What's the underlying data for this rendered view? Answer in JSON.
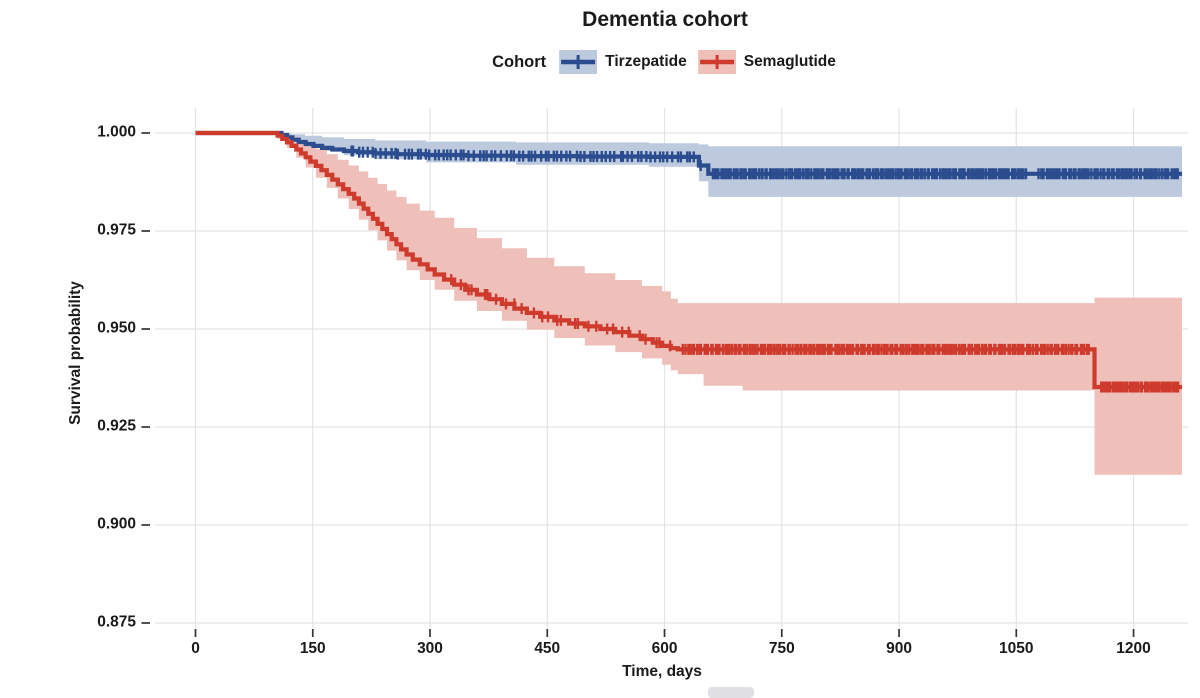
{
  "page": {
    "background": "#ffffff"
  },
  "legend": {
    "title": "Cohort",
    "items": [
      {
        "label": "Tirzepatide",
        "color": "#2B4C8F",
        "band_color": "#BDCADD"
      },
      {
        "label": "Semaglutide",
        "color": "#CE3B2D",
        "band_color": "#EFBFBA"
      }
    ]
  },
  "colors": {
    "grid": "#e3e3e3",
    "axis_tick": "#333333",
    "text": "#1a1a1a"
  },
  "decorations": {
    "bottom_fragment_color": "#e0e0e4"
  },
  "chart_data": {
    "type": "line",
    "subtype": "kaplan-meier-step",
    "title": "Dementia cohort",
    "xlabel": "Time, days",
    "ylabel": "Survival probability",
    "xlim": [
      0,
      1272
    ],
    "ylim": [
      0.875,
      1.0
    ],
    "x_ticks": [
      0,
      150,
      300,
      450,
      600,
      750,
      900,
      1050,
      1200
    ],
    "x_tick_labels": [
      "0",
      "150",
      "300",
      "450",
      "600",
      "750",
      "900",
      "1050",
      "1200"
    ],
    "y_ticks": [
      1.0,
      0.975,
      0.95,
      0.925,
      0.9,
      0.875
    ],
    "y_tick_labels": [
      "1.000",
      "0.975",
      "0.950",
      "0.925",
      "0.900",
      "0.875"
    ],
    "grid": true,
    "legend_position": "top",
    "end_day": 1262,
    "series": [
      {
        "name": "Tirzepatide",
        "color": "#2B4C8F",
        "band_color": "#BDCADD",
        "line": [
          [
            0,
            1.0
          ],
          [
            110,
            0.9995
          ],
          [
            117,
            0.9989
          ],
          [
            124,
            0.9983
          ],
          [
            132,
            0.9977
          ],
          [
            141,
            0.9972
          ],
          [
            151,
            0.9967
          ],
          [
            162,
            0.9962
          ],
          [
            175,
            0.9958
          ],
          [
            190,
            0.9954
          ],
          [
            208,
            0.9951
          ],
          [
            230,
            0.9948
          ],
          [
            258,
            0.9946
          ],
          [
            295,
            0.9944
          ],
          [
            345,
            0.9942
          ],
          [
            410,
            0.9941
          ],
          [
            490,
            0.994
          ],
          [
            580,
            0.9939
          ],
          [
            644,
            0.9917
          ],
          [
            656,
            0.9896
          ],
          [
            1262,
            0.9896
          ]
        ],
        "ci_upper": [
          [
            0,
            1.0
          ],
          [
            110,
            1.0
          ],
          [
            122,
            0.9997
          ],
          [
            140,
            0.9993
          ],
          [
            162,
            0.9989
          ],
          [
            190,
            0.9985
          ],
          [
            230,
            0.9981
          ],
          [
            295,
            0.9978
          ],
          [
            410,
            0.9976
          ],
          [
            580,
            0.9974
          ],
          [
            644,
            0.9971
          ],
          [
            656,
            0.9966
          ],
          [
            1262,
            0.9966
          ]
        ],
        "ci_lower": [
          [
            0,
            1.0
          ],
          [
            110,
            0.9989
          ],
          [
            124,
            0.9978
          ],
          [
            141,
            0.9966
          ],
          [
            162,
            0.9954
          ],
          [
            190,
            0.9943
          ],
          [
            230,
            0.9933
          ],
          [
            295,
            0.9925
          ],
          [
            410,
            0.9919
          ],
          [
            580,
            0.9914
          ],
          [
            644,
            0.9877
          ],
          [
            656,
            0.9837
          ],
          [
            1262,
            0.9837
          ]
        ],
        "censor_segments": [
          {
            "from": 195,
            "to": 648,
            "count": 80
          },
          {
            "from": 660,
            "to": 1064,
            "count": 150
          },
          {
            "from": 1078,
            "to": 1258,
            "count": 62
          }
        ]
      },
      {
        "name": "Semaglutide",
        "color": "#CE3B2D",
        "band_color": "#EFBFBA",
        "line": [
          [
            0,
            1.0
          ],
          [
            105,
            0.9993
          ],
          [
            111,
            0.9985
          ],
          [
            117,
            0.9976
          ],
          [
            123,
            0.9967
          ],
          [
            129,
            0.9958
          ],
          [
            135,
            0.9948
          ],
          [
            141,
            0.9938
          ],
          [
            147,
            0.9927
          ],
          [
            154,
            0.9916
          ],
          [
            161,
            0.9905
          ],
          [
            168,
            0.9893
          ],
          [
            175,
            0.9881
          ],
          [
            182,
            0.9869
          ],
          [
            189,
            0.9857
          ],
          [
            196,
            0.9845
          ],
          [
            203,
            0.9833
          ],
          [
            209,
            0.982
          ],
          [
            215,
            0.9807
          ],
          [
            221,
            0.9794
          ],
          [
            227,
            0.9781
          ],
          [
            233,
            0.9768
          ],
          [
            239,
            0.9755
          ],
          [
            245,
            0.9742
          ],
          [
            251,
            0.9729
          ],
          [
            257,
            0.9716
          ],
          [
            263,
            0.9703
          ],
          [
            270,
            0.969
          ],
          [
            278,
            0.9677
          ],
          [
            287,
            0.9665
          ],
          [
            297,
            0.9652
          ],
          [
            306,
            0.9639
          ],
          [
            318,
            0.9626
          ],
          [
            331,
            0.9613
          ],
          [
            345,
            0.96
          ],
          [
            360,
            0.9588
          ],
          [
            376,
            0.9576
          ],
          [
            392,
            0.9564
          ],
          [
            408,
            0.9552
          ],
          [
            424,
            0.9541
          ],
          [
            441,
            0.9531
          ],
          [
            459,
            0.9522
          ],
          [
            478,
            0.9514
          ],
          [
            498,
            0.9507
          ],
          [
            518,
            0.95
          ],
          [
            537,
            0.9492
          ],
          [
            555,
            0.9483
          ],
          [
            571,
            0.9474
          ],
          [
            585,
            0.9465
          ],
          [
            597,
            0.9457
          ],
          [
            608,
            0.9451
          ],
          [
            617,
            0.9448
          ],
          [
            1150,
            0.9448
          ],
          [
            1150,
            0.9352
          ],
          [
            1262,
            0.9352
          ]
        ],
        "ci_upper": [
          [
            0,
            1.0
          ],
          [
            105,
            0.9998
          ],
          [
            117,
            0.9991
          ],
          [
            129,
            0.9982
          ],
          [
            141,
            0.9972
          ],
          [
            154,
            0.996
          ],
          [
            168,
            0.9946
          ],
          [
            182,
            0.9932
          ],
          [
            196,
            0.9917
          ],
          [
            209,
            0.9902
          ],
          [
            221,
            0.9886
          ],
          [
            233,
            0.987
          ],
          [
            245,
            0.9853
          ],
          [
            257,
            0.9837
          ],
          [
            270,
            0.982
          ],
          [
            287,
            0.9802
          ],
          [
            306,
            0.9784
          ],
          [
            331,
            0.9758
          ],
          [
            360,
            0.9732
          ],
          [
            392,
            0.9706
          ],
          [
            424,
            0.9682
          ],
          [
            459,
            0.966
          ],
          [
            498,
            0.9642
          ],
          [
            537,
            0.9625
          ],
          [
            571,
            0.961
          ],
          [
            597,
            0.9596
          ],
          [
            608,
            0.9577
          ],
          [
            617,
            0.9566
          ],
          [
            1150,
            0.9566
          ],
          [
            1150,
            0.958
          ],
          [
            1262,
            0.958
          ]
        ],
        "ci_lower": [
          [
            0,
            1.0
          ],
          [
            105,
            0.9985
          ],
          [
            117,
            0.9962
          ],
          [
            129,
            0.9937
          ],
          [
            141,
            0.9912
          ],
          [
            154,
            0.9886
          ],
          [
            168,
            0.986
          ],
          [
            182,
            0.9833
          ],
          [
            196,
            0.9806
          ],
          [
            209,
            0.9779
          ],
          [
            221,
            0.9752
          ],
          [
            233,
            0.9726
          ],
          [
            245,
            0.97
          ],
          [
            257,
            0.9675
          ],
          [
            270,
            0.965
          ],
          [
            287,
            0.9625
          ],
          [
            306,
            0.96
          ],
          [
            331,
            0.9572
          ],
          [
            360,
            0.9546
          ],
          [
            392,
            0.9521
          ],
          [
            424,
            0.9498
          ],
          [
            459,
            0.9477
          ],
          [
            498,
            0.9458
          ],
          [
            537,
            0.9441
          ],
          [
            571,
            0.9425
          ],
          [
            597,
            0.9409
          ],
          [
            608,
            0.9395
          ],
          [
            617,
            0.9385
          ],
          [
            650,
            0.9355
          ],
          [
            700,
            0.9343
          ],
          [
            1150,
            0.9341
          ],
          [
            1150,
            0.9128
          ],
          [
            1262,
            0.9128
          ]
        ],
        "censor_segments": [
          {
            "from": 320,
            "to": 612,
            "count": 28
          },
          {
            "from": 622,
            "to": 1145,
            "count": 175
          },
          {
            "from": 1158,
            "to": 1258,
            "count": 42
          }
        ]
      }
    ]
  }
}
